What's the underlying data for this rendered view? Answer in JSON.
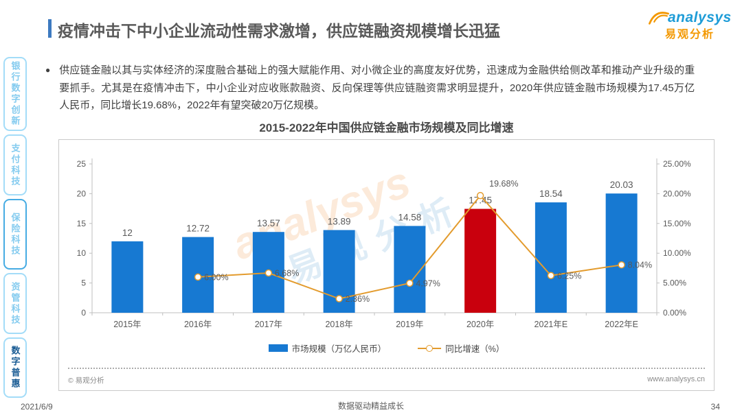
{
  "header": {
    "title": "疫情冲击下中小企业流动性需求激增，供应链融资规模增长迅猛",
    "accent_color": "#3D7AC0"
  },
  "logo": {
    "brand": "analysys",
    "cn": "易观分析"
  },
  "sidebar": {
    "tabs": [
      {
        "label": "银行数字创新"
      },
      {
        "label": "支付科技"
      },
      {
        "label": "保险科技"
      },
      {
        "label": "资管科技"
      },
      {
        "label": "数字普惠"
      }
    ],
    "active": "数字普惠"
  },
  "body": {
    "bullet": "●",
    "paragraph": "供应链金融以其与实体经济的深度融合基础上的强大赋能作用、对小微企业的高度友好优势，迅速成为金融供给侧改革和推动产业升级的重要抓手。尤其是在疫情冲击下，中小企业对应收账款融资、反向保理等供应链融资需求明显提升，2020年供应链金融市场规模为17.45万亿人民币，同比增长19.68%，2022年有望突破20万亿规模。"
  },
  "chart_data": {
    "type": "bar",
    "title": "2015-2022年中国供应链金融市场规模及同比增速",
    "categories": [
      "2015年",
      "2016年",
      "2017年",
      "2018年",
      "2019年",
      "2020年",
      "2021年E",
      "2022年E"
    ],
    "series": [
      {
        "name": "市场规模（万亿人民币）",
        "type": "bar",
        "axis": "left",
        "values": [
          12,
          12.72,
          13.57,
          13.89,
          14.58,
          17.45,
          18.54,
          20.03
        ]
      },
      {
        "name": "同比增速（%）",
        "type": "line",
        "axis": "right",
        "values": [
          null,
          6.0,
          6.68,
          2.36,
          4.97,
          19.68,
          6.25,
          8.04
        ]
      }
    ],
    "bar_labels": [
      "12",
      "12.72",
      "13.57",
      "13.89",
      "14.58",
      "17.45",
      "18.54",
      "20.03"
    ],
    "line_labels": [
      null,
      "6.00%",
      "6.68%",
      "2.36%",
      "4.97%",
      "19.68%",
      "6.25%",
      "8.04%"
    ],
    "highlight_index": 5,
    "left_axis": {
      "min": 0,
      "max": 25,
      "step": 5
    },
    "right_axis": {
      "min": 0,
      "max": 25,
      "step": 5,
      "format": "percent"
    },
    "legend_position": "bottom",
    "grid": false,
    "colors": {
      "bar": "#1779D2",
      "bar_highlight": "#C9000D",
      "line": "#E39B2D"
    }
  },
  "chart_card": {
    "copyright": "© 易观分析",
    "website": "www.analysys.cn",
    "watermark_brand": "analysys",
    "watermark_cn": "易观分析"
  },
  "footer": {
    "date": "2021/6/9",
    "tagline": "数据驱动精益成长",
    "page": "34"
  }
}
